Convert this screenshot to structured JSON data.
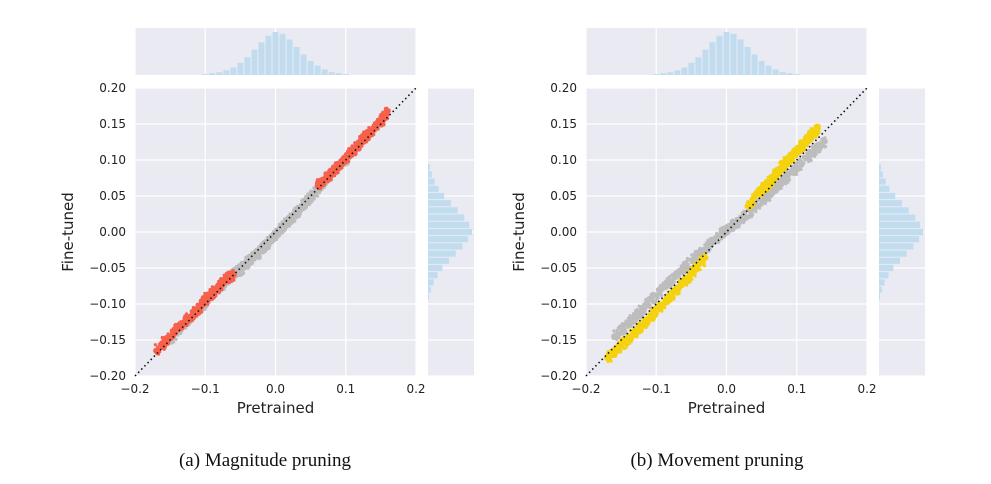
{
  "colors": {
    "panel_bg": "#eaeaf2",
    "grid": "#ffffff",
    "background_points": "#bdbdbd",
    "histogram": "#c2dcef",
    "identity_line": "#111111"
  },
  "chart_data": [
    {
      "type": "scatter",
      "title": "",
      "caption": "(a) Magnitude pruning",
      "xlabel": "Pretrained",
      "ylabel": "Fine-tuned",
      "xlim": [
        -0.2,
        0.2
      ],
      "ylim": [
        -0.2,
        0.2
      ],
      "x_ticks": [
        "−0.2",
        "−0.1",
        "0.0",
        "0.1",
        "0.2"
      ],
      "y_ticks": [
        "−0.20",
        "−0.15",
        "−0.10",
        "−0.05",
        "0.00",
        "0.05",
        "0.10",
        "0.15",
        "0.20"
      ],
      "grid": true,
      "identity_line": true,
      "marginal_histograms": [
        "top",
        "right"
      ],
      "series": [
        {
          "role": "background",
          "color": "#bdbdbd",
          "points": [
            [
              -0.15,
              -0.152
            ],
            [
              -0.12,
              -0.118
            ],
            [
              -0.09,
              -0.088
            ],
            [
              -0.07,
              -0.066
            ],
            [
              -0.06,
              -0.058
            ],
            [
              -0.05,
              -0.053
            ],
            [
              -0.04,
              -0.042
            ],
            [
              -0.03,
              -0.034
            ],
            [
              -0.02,
              -0.025
            ],
            [
              -0.01,
              -0.014
            ],
            [
              0.0,
              -0.004
            ],
            [
              0.01,
              0.007
            ],
            [
              0.02,
              0.016
            ],
            [
              0.03,
              0.027
            ],
            [
              0.04,
              0.038
            ],
            [
              0.05,
              0.048
            ],
            [
              0.06,
              0.058
            ],
            [
              0.09,
              0.09
            ],
            [
              0.12,
              0.122
            ]
          ]
        },
        {
          "role": "highlight",
          "color": "#f7604a",
          "points": [
            [
              -0.17,
              -0.165
            ],
            [
              -0.15,
              -0.145
            ],
            [
              -0.13,
              -0.125
            ],
            [
              -0.11,
              -0.108
            ],
            [
              -0.1,
              -0.094
            ],
            [
              -0.09,
              -0.085
            ],
            [
              -0.08,
              -0.076
            ],
            [
              -0.07,
              -0.065
            ],
            [
              -0.06,
              -0.06
            ],
            [
              0.06,
              0.064
            ],
            [
              0.07,
              0.072
            ],
            [
              0.08,
              0.082
            ],
            [
              0.09,
              0.092
            ],
            [
              0.1,
              0.103
            ],
            [
              0.11,
              0.112
            ],
            [
              0.12,
              0.124
            ],
            [
              0.13,
              0.134
            ],
            [
              0.15,
              0.153
            ],
            [
              0.16,
              0.168
            ]
          ]
        }
      ],
      "top_histogram": {
        "bins": [
          -0.1,
          -0.09,
          -0.08,
          -0.07,
          -0.06,
          -0.05,
          -0.04,
          -0.03,
          -0.02,
          -0.01,
          0.0,
          0.01,
          0.02,
          0.03,
          0.04,
          0.05,
          0.06,
          0.07,
          0.08,
          0.09,
          0.1
        ],
        "counts": [
          1,
          2,
          3,
          5,
          8,
          13,
          19,
          27,
          35,
          42,
          46,
          44,
          38,
          30,
          22,
          15,
          10,
          6,
          3,
          2,
          1
        ]
      },
      "right_histogram": {
        "bins": [
          0.09,
          0.08,
          0.07,
          0.06,
          0.05,
          0.04,
          0.03,
          0.02,
          0.01,
          0.0,
          -0.01,
          -0.02,
          -0.03,
          -0.04,
          -0.05,
          -0.06,
          -0.07,
          -0.08,
          -0.09
        ],
        "counts": [
          2,
          4,
          7,
          11,
          17,
          24,
          31,
          38,
          43,
          46,
          42,
          36,
          29,
          22,
          15,
          10,
          6,
          3,
          1
        ]
      }
    },
    {
      "type": "scatter",
      "title": "",
      "caption": "(b) Movement pruning",
      "xlabel": "Pretrained",
      "ylabel": "Fine-tuned",
      "xlim": [
        -0.2,
        0.2
      ],
      "ylim": [
        -0.2,
        0.2
      ],
      "x_ticks": [
        "−0.2",
        "−0.1",
        "0.0",
        "0.1",
        "0.2"
      ],
      "y_ticks": [
        "−0.20",
        "−0.15",
        "−0.10",
        "−0.05",
        "0.00",
        "0.05",
        "0.10",
        "0.15",
        "0.20"
      ],
      "grid": true,
      "identity_line": true,
      "marginal_histograms": [
        "top",
        "right"
      ],
      "series": [
        {
          "role": "background",
          "color": "#bdbdbd",
          "points": [
            [
              -0.16,
              -0.145
            ],
            [
              -0.14,
              -0.128
            ],
            [
              -0.12,
              -0.108
            ],
            [
              -0.1,
              -0.088
            ],
            [
              -0.08,
              -0.068
            ],
            [
              -0.06,
              -0.05
            ],
            [
              -0.04,
              -0.032
            ],
            [
              -0.02,
              -0.014
            ],
            [
              0.0,
              0.004
            ],
            [
              0.02,
              0.016
            ],
            [
              0.04,
              0.034
            ],
            [
              0.06,
              0.052
            ],
            [
              0.08,
              0.071
            ],
            [
              0.1,
              0.089
            ],
            [
              0.12,
              0.108
            ],
            [
              0.14,
              0.126
            ]
          ]
        },
        {
          "role": "highlight",
          "color": "#f5d20f",
          "points": [
            [
              -0.17,
              -0.175
            ],
            [
              -0.15,
              -0.158
            ],
            [
              -0.13,
              -0.14
            ],
            [
              -0.11,
              -0.12
            ],
            [
              -0.09,
              -0.1
            ],
            [
              -0.07,
              -0.08
            ],
            [
              -0.05,
              -0.058
            ],
            [
              -0.03,
              -0.036
            ],
            [
              0.03,
              0.036
            ],
            [
              0.05,
              0.058
            ],
            [
              0.06,
              0.068
            ],
            [
              0.07,
              0.08
            ],
            [
              0.08,
              0.092
            ],
            [
              0.09,
              0.102
            ],
            [
              0.1,
              0.112
            ],
            [
              0.11,
              0.122
            ],
            [
              0.12,
              0.134
            ],
            [
              0.13,
              0.144
            ]
          ]
        }
      ],
      "top_histogram": {
        "bins": [
          -0.1,
          -0.09,
          -0.08,
          -0.07,
          -0.06,
          -0.05,
          -0.04,
          -0.03,
          -0.02,
          -0.01,
          0.0,
          0.01,
          0.02,
          0.03,
          0.04,
          0.05,
          0.06,
          0.07,
          0.08,
          0.09,
          0.1
        ],
        "counts": [
          1,
          2,
          3,
          5,
          8,
          13,
          19,
          27,
          35,
          42,
          46,
          44,
          38,
          30,
          22,
          15,
          10,
          6,
          3,
          2,
          1
        ]
      },
      "right_histogram": {
        "bins": [
          0.09,
          0.08,
          0.07,
          0.06,
          0.05,
          0.04,
          0.03,
          0.02,
          0.01,
          0.0,
          -0.01,
          -0.02,
          -0.03,
          -0.04,
          -0.05,
          -0.06,
          -0.07,
          -0.08,
          -0.09
        ],
        "counts": [
          2,
          4,
          7,
          11,
          17,
          24,
          31,
          38,
          43,
          46,
          42,
          36,
          29,
          22,
          15,
          10,
          6,
          3,
          1
        ]
      }
    }
  ]
}
